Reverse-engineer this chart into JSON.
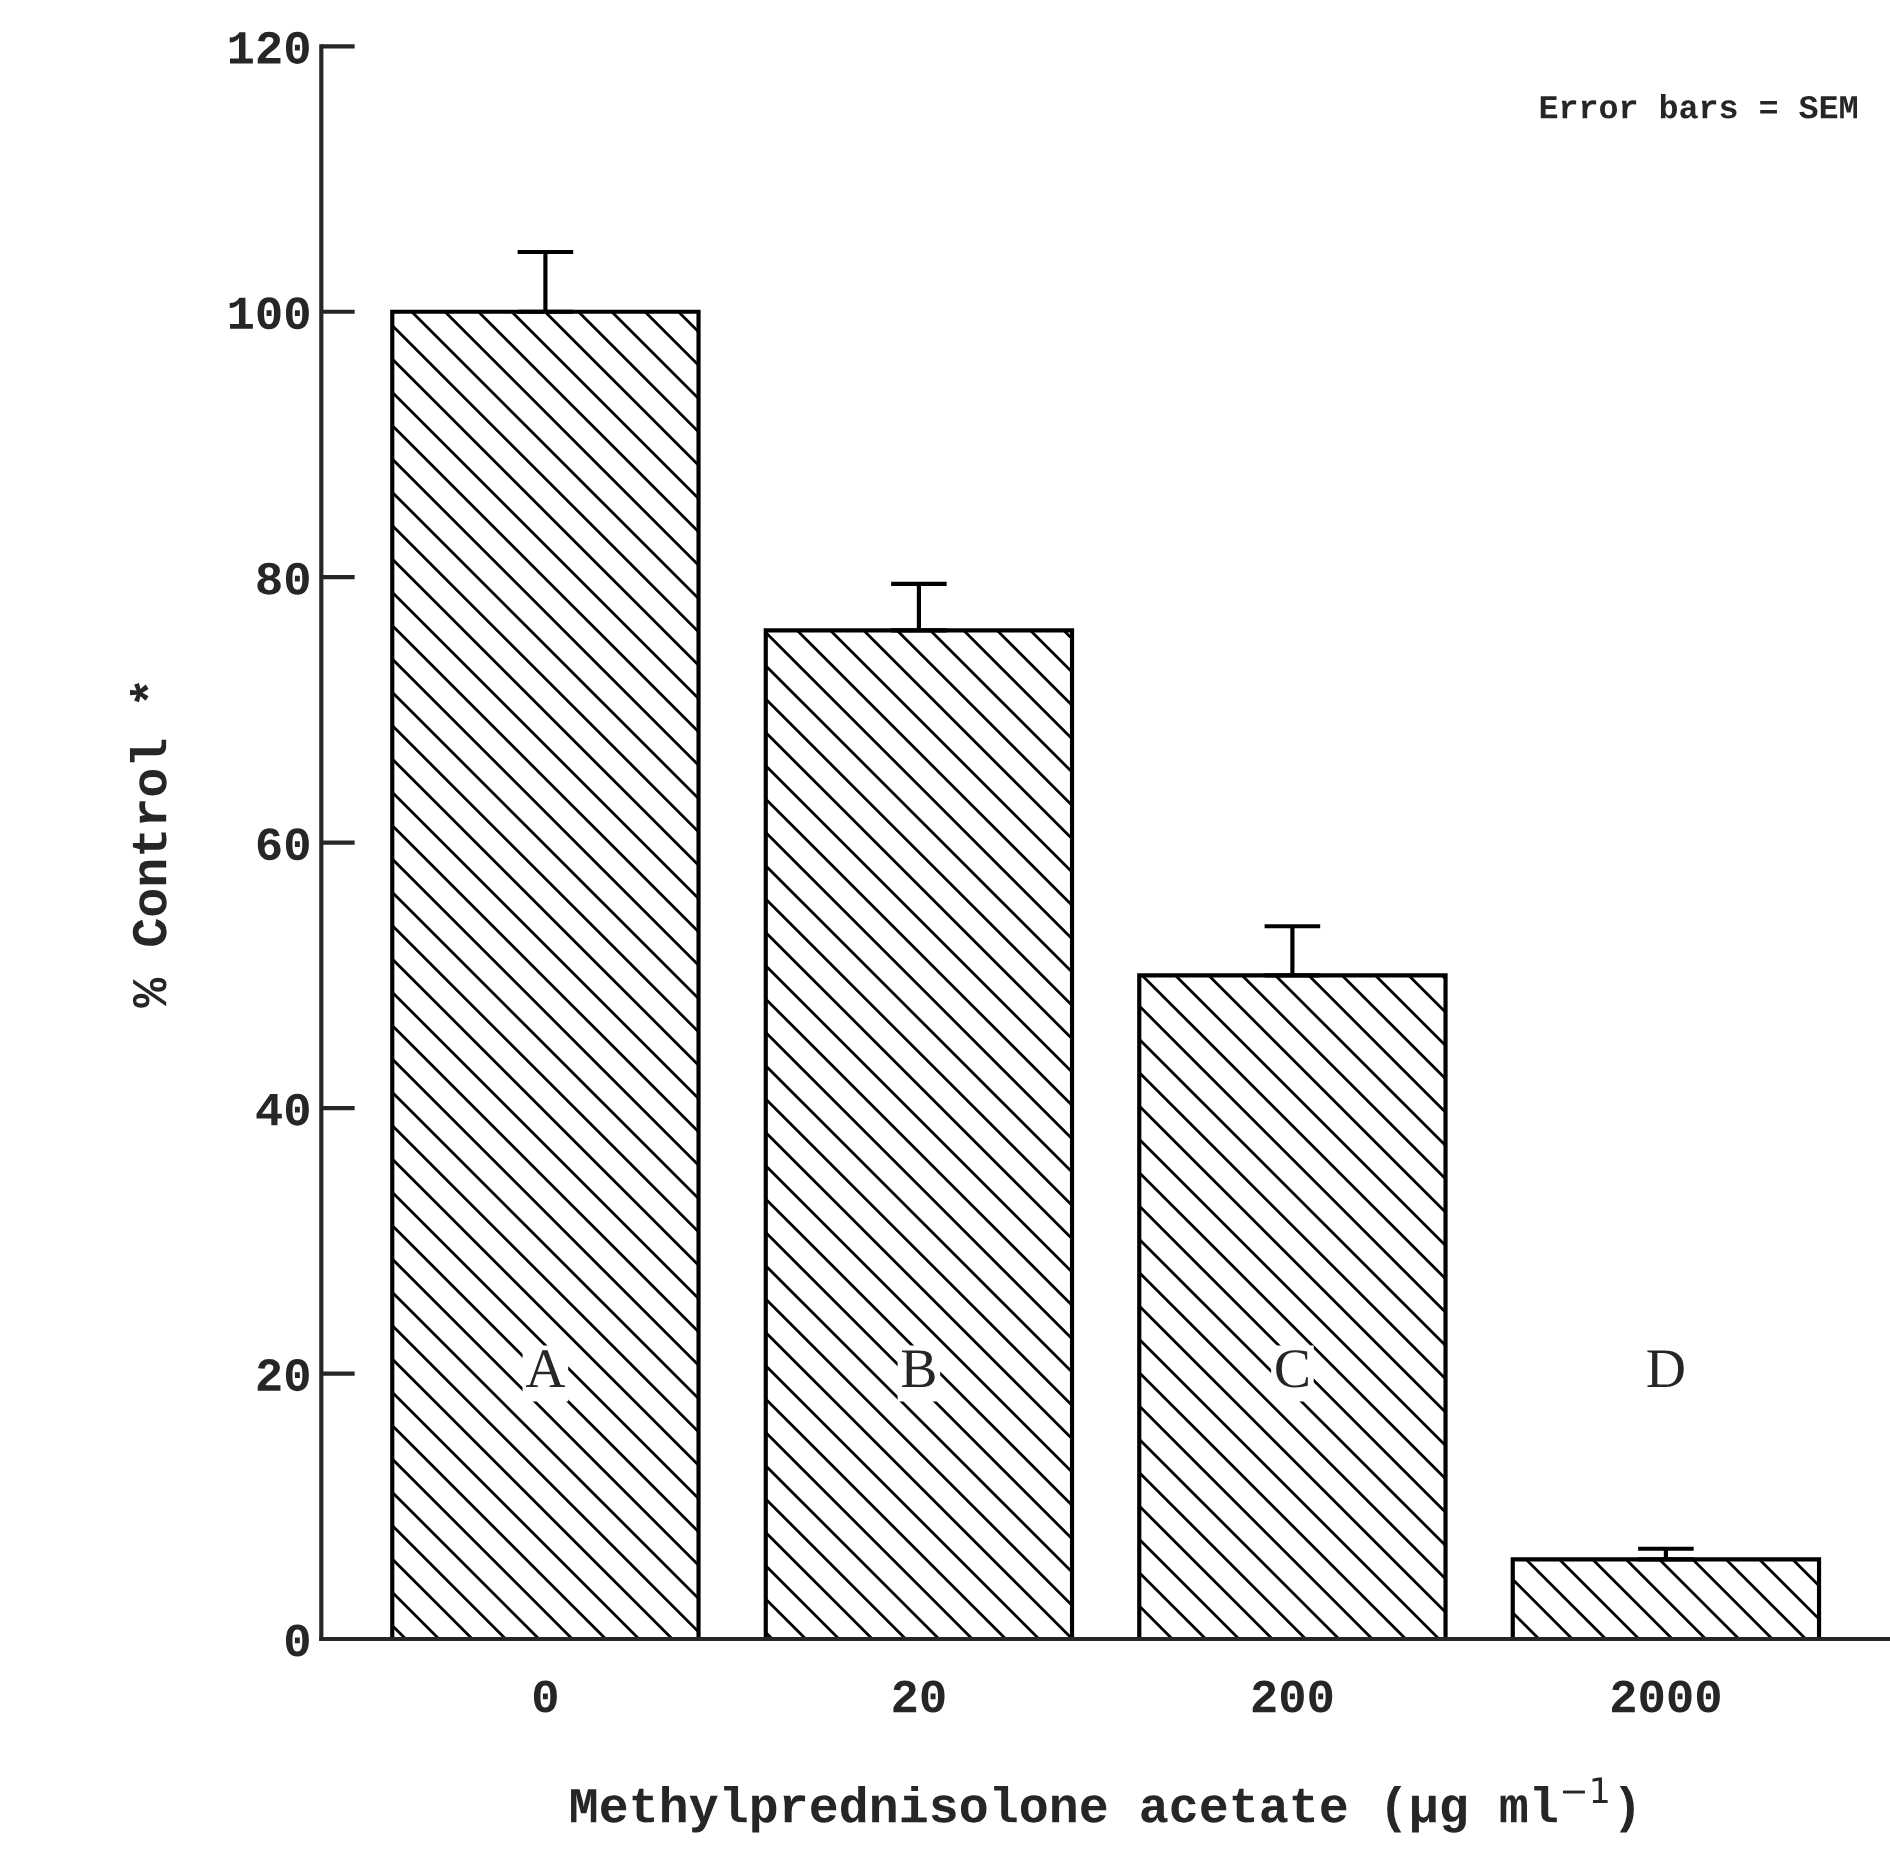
{
  "chart_data": {
    "type": "bar",
    "xlabel": "Methylprednisolone acetate (μg ml$^{−1}$)",
    "ylabel": "% Control *",
    "categories": [
      "0",
      "20",
      "200",
      "2000"
    ],
    "values": [
      100,
      76,
      50,
      6
    ],
    "errors": [
      [
        100,
        104.5
      ],
      [
        76,
        79.5
      ],
      [
        50,
        53.7
      ],
      [
        6,
        6.8
      ]
    ],
    "color": "#000000",
    "ylim": [
      0,
      120
    ],
    "yticks": [
      0,
      20,
      40,
      60,
      80,
      100,
      120
    ],
    "grid": false,
    "annotations": [
      {
        "text": "A",
        "x": "0",
        "y": 20
      },
      {
        "text": "B",
        "x": "20",
        "y": 20
      },
      {
        "text": "C",
        "x": "200",
        "y": 20
      },
      {
        "text": "D",
        "x": "2000",
        "y": 20
      },
      "Error bars = SEM"
    ]
  }
}
